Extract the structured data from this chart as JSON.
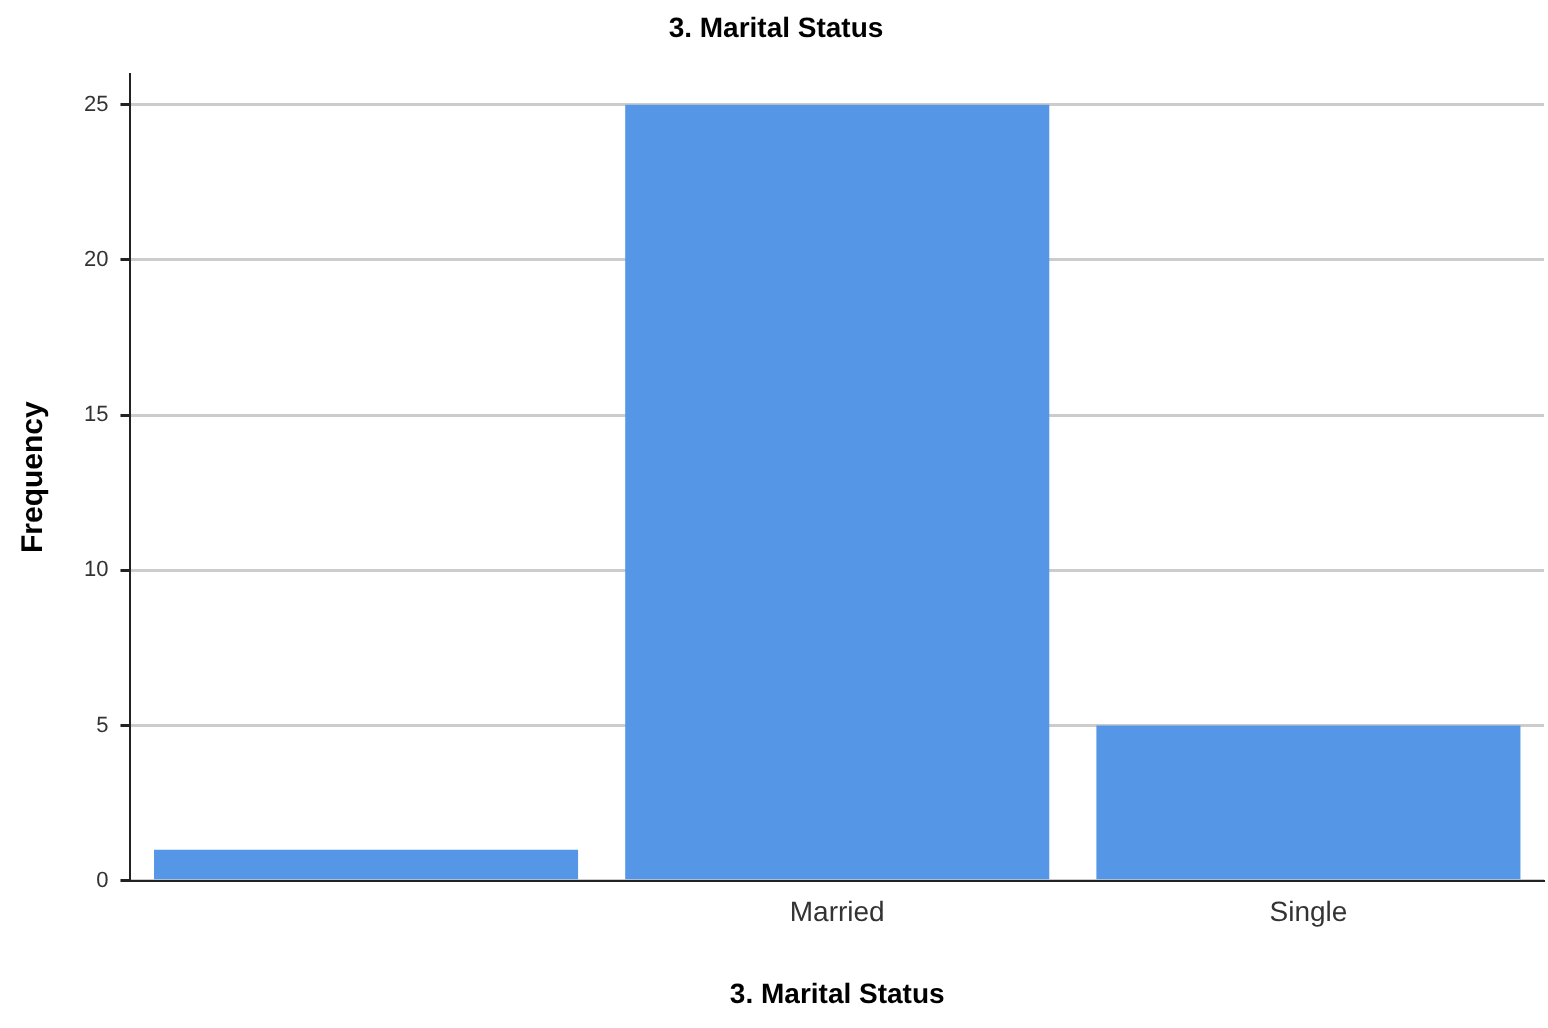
{
  "chart_data": {
    "type": "bar",
    "title": "3. Marital Status",
    "xlabel": "3. Marital Status",
    "ylabel": "Frequency",
    "categories": [
      null,
      "Married",
      "Single"
    ],
    "values": [
      1,
      25,
      5
    ],
    "color": "#5596e6",
    "ylim": [
      0,
      26
    ],
    "yticks": [
      0,
      5,
      10,
      15,
      20,
      25
    ],
    "grid": "y",
    "legend": false
  }
}
